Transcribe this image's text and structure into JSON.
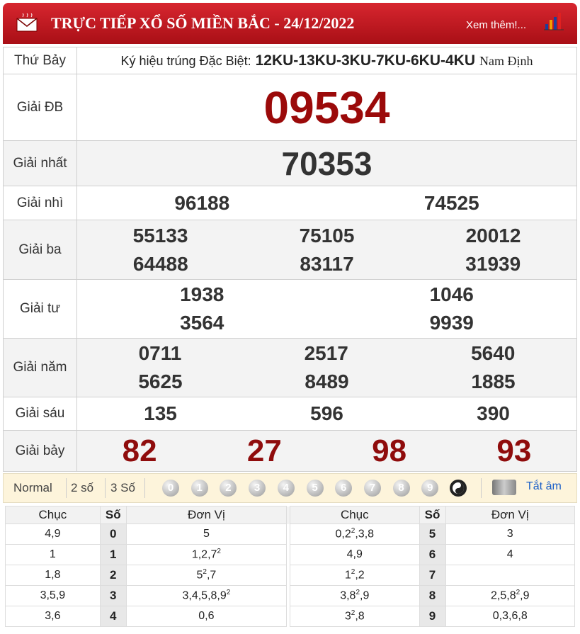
{
  "header": {
    "title": "TRỰC TIẾP XỔ SỐ MIỀN BẮC - 24/12/2022",
    "more": "Xem thêm!..."
  },
  "info": {
    "day": "Thứ Bảy",
    "code_label": "Ký hiệu trúng Đặc Biệt:",
    "code": "12KU-13KU-3KU-7KU-6KU-4KU",
    "province": "Nam Định"
  },
  "prizes": [
    {
      "label": "Giải ĐB",
      "numbers": [
        [
          "09534"
        ]
      ]
    },
    {
      "label": "Giải nhất",
      "numbers": [
        [
          "70353"
        ]
      ]
    },
    {
      "label": "Giải nhì",
      "numbers": [
        [
          "96188",
          "74525"
        ]
      ]
    },
    {
      "label": "Giải ba",
      "numbers": [
        [
          "55133",
          "75105",
          "20012"
        ],
        [
          "64488",
          "83117",
          "31939"
        ]
      ]
    },
    {
      "label": "Giải tư",
      "numbers": [
        [
          "1938",
          "1046"
        ],
        [
          "3564",
          "9939"
        ]
      ]
    },
    {
      "label": "Giải năm",
      "numbers": [
        [
          "0711",
          "2517",
          "5640"
        ],
        [
          "5625",
          "8489",
          "1885"
        ]
      ]
    },
    {
      "label": "Giải sáu",
      "numbers": [
        [
          "135",
          "596",
          "390"
        ]
      ]
    },
    {
      "label": "Giải bảy",
      "numbers": [
        [
          "82",
          "27",
          "98",
          "93"
        ]
      ]
    }
  ],
  "filters": {
    "modes": [
      "Normal",
      "2 số",
      "3 Số"
    ],
    "digits": [
      "0",
      "1",
      "2",
      "3",
      "4",
      "5",
      "6",
      "7",
      "8",
      "9"
    ],
    "mute": "Tắt âm"
  },
  "loto": {
    "headers": [
      "Chục",
      "Số",
      "Đơn Vị",
      "Chục",
      "Số",
      "Đơn Vị"
    ],
    "rows": [
      [
        [
          "4,9"
        ],
        [
          "0"
        ],
        [
          "5"
        ],
        [
          "0,2",
          "2",
          ",3,8"
        ],
        [
          "5"
        ],
        [
          "3"
        ]
      ],
      [
        [
          "1"
        ],
        [
          "1"
        ],
        [
          "1,2,7",
          "2"
        ],
        [
          "4,9"
        ],
        [
          "6"
        ],
        [
          "4"
        ]
      ],
      [
        [
          "1,8"
        ],
        [
          "2"
        ],
        [
          "5",
          "2",
          ",7"
        ],
        [
          "1",
          "2",
          ",2"
        ],
        [
          "7"
        ],
        []
      ],
      [
        [
          "3,5,9"
        ],
        [
          "3"
        ],
        [
          "3,4,5,8,9",
          "2"
        ],
        [
          "3,8",
          "2",
          ",9"
        ],
        [
          "8"
        ],
        [
          "2,5,8",
          "2",
          ",9"
        ]
      ],
      [
        [
          "3,6"
        ],
        [
          "4"
        ],
        [
          "0,6"
        ],
        [
          "3",
          "2",
          ",8"
        ],
        [
          "9"
        ],
        [
          "0,3,6,8"
        ]
      ]
    ]
  }
}
